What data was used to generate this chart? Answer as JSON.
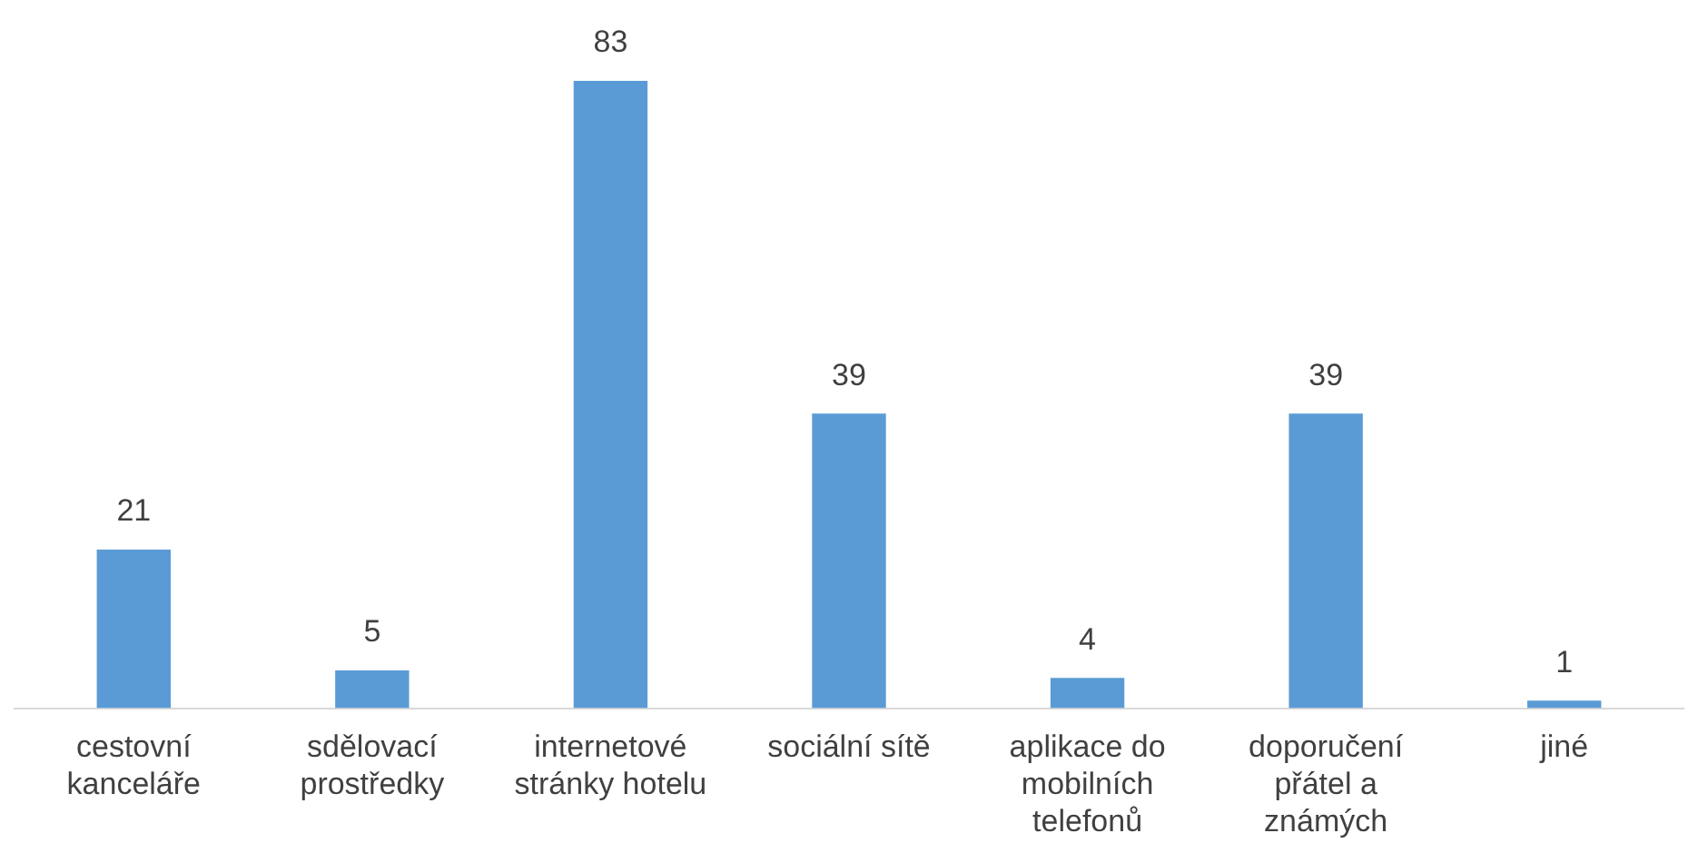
{
  "chart_data": {
    "type": "bar",
    "categories": [
      "cestovní kanceláře",
      "sdělovací prostředky",
      "internetové stránky hotelu",
      "sociální sítě",
      "aplikace do mobilních telefonů",
      "doporučení přátel a známých",
      "jiné"
    ],
    "values": [
      21,
      5,
      83,
      39,
      4,
      39,
      1
    ],
    "color": "#5b9bd5",
    "data_labels": true,
    "grid": false,
    "legend": false
  }
}
